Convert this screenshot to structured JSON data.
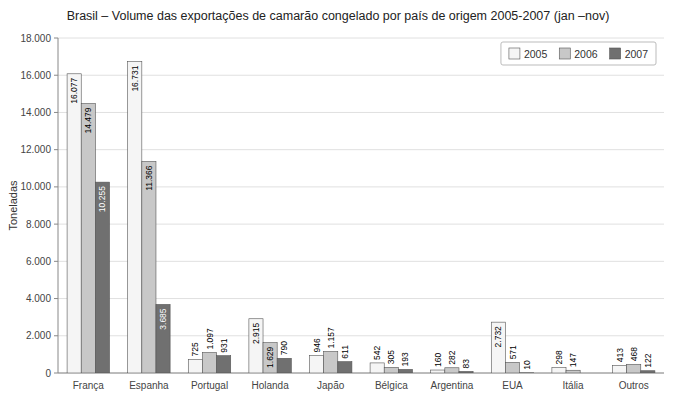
{
  "chart_data": {
    "type": "bar",
    "title": "Brasil – Volume das exportações de camarão congelado por país de origem 2005-2007 (jan –nov)",
    "ylabel": "Toneladas",
    "categories": [
      "França",
      "Espanha",
      "Portugal",
      "Holanda",
      "Japão",
      "Bélgica",
      "Argentina",
      "EUA",
      "Itália",
      "Outros"
    ],
    "series": [
      {
        "name": "2005",
        "color": "#f5f5f5",
        "values": [
          16077,
          16731,
          725,
          2915,
          946,
          542,
          160,
          2732,
          298,
          413
        ],
        "value_labels": [
          "16.077",
          "16.731",
          "725",
          "2.915",
          "946",
          "542",
          "160",
          "2.732",
          "298",
          "413"
        ]
      },
      {
        "name": "2006",
        "color": "#c8c8c8",
        "values": [
          14479,
          11366,
          1097,
          1629,
          1157,
          305,
          282,
          571,
          147,
          468
        ],
        "value_labels": [
          "14.479",
          "11.366",
          "1.097",
          "1.629",
          "1.157",
          "305",
          "282",
          "571",
          "147",
          "468"
        ]
      },
      {
        "name": "2007",
        "color": "#707070",
        "values": [
          10255,
          3685,
          931,
          790,
          611,
          193,
          83,
          10,
          0,
          122
        ],
        "value_labels": [
          "10.255",
          "3.685",
          "931",
          "790",
          "611",
          "193",
          "83",
          "10",
          null,
          "122"
        ]
      }
    ],
    "ylim": [
      0,
      18000
    ],
    "yticks": [
      0,
      {
        "value": 2000,
        "label": "2.000"
      },
      {
        "value": 4000,
        "label": "4.000"
      },
      {
        "value": 6000,
        "label": "6.000"
      },
      {
        "value": 8000,
        "label": "8.000"
      },
      {
        "value": 10000,
        "label": "10.000"
      },
      {
        "value": 12000,
        "label": "12.000"
      },
      {
        "value": 14000,
        "label": "14.000"
      },
      {
        "value": 16000,
        "label": "16.000"
      },
      {
        "value": 18000,
        "label": "18.000"
      }
    ],
    "grid": true,
    "legend": "upper-right",
    "data_labels": true
  }
}
